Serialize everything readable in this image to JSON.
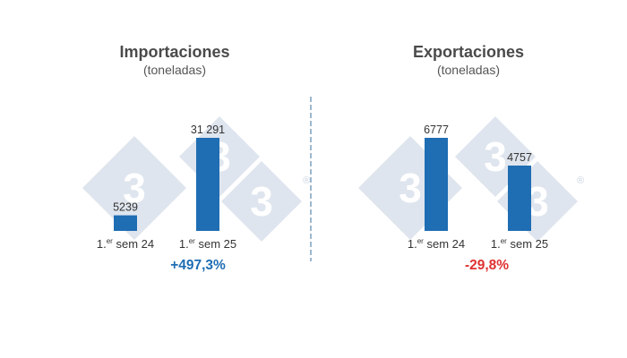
{
  "watermark": {
    "logo_digit": "3",
    "registered_mark": "®"
  },
  "colors": {
    "bar": "#1f6db3",
    "increase": "#1f6db3",
    "decrease": "#e03030",
    "divider": "#7aa0c0"
  },
  "chart_data": [
    {
      "type": "bar",
      "title": "Importaciones",
      "subtitle": "(toneladas)",
      "categories": [
        {
          "prefix": "1.",
          "sup": "er",
          "suffix": " sem 24"
        },
        {
          "prefix": "1.",
          "sup": "er",
          "suffix": " sem 25"
        }
      ],
      "values": [
        5239,
        31291
      ],
      "value_labels": [
        "5239",
        "31 291"
      ],
      "change_label": "+497,3%",
      "change_direction": "increase",
      "ylim": [
        0,
        31291
      ]
    },
    {
      "type": "bar",
      "title": "Exportaciones",
      "subtitle": "(toneladas)",
      "categories": [
        {
          "prefix": "1.",
          "sup": "er",
          "suffix": " sem 24"
        },
        {
          "prefix": "1.",
          "sup": "er",
          "suffix": " sem 25"
        }
      ],
      "values": [
        6777,
        4757
      ],
      "value_labels": [
        "6777",
        "4757"
      ],
      "change_label": "-29,8%",
      "change_direction": "decrease",
      "ylim": [
        0,
        6777
      ]
    }
  ]
}
